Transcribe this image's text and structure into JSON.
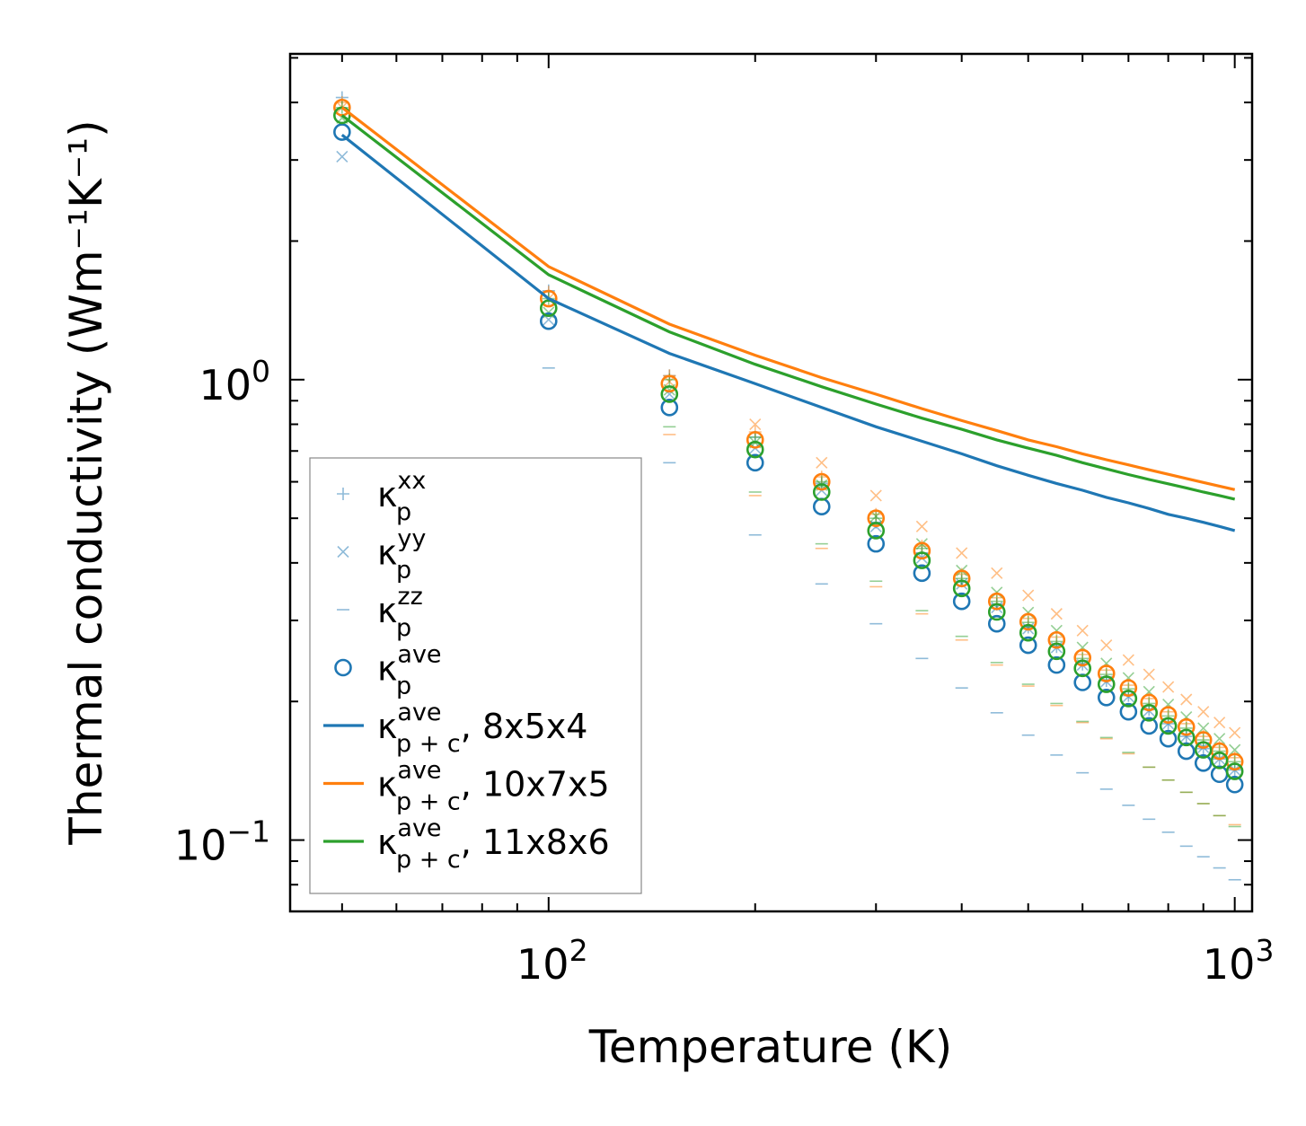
{
  "chart_data": {
    "type": "scatter",
    "title": "",
    "xlabel": "Temperature (K)",
    "ylabel": "Thermal conductivity (Wm⁻¹K⁻¹)",
    "xscale": "log",
    "yscale": "log",
    "xlim": [
      42,
      1060
    ],
    "ylim": [
      0.07,
      5.1
    ],
    "xticks": [
      {
        "value": 100,
        "base": "10",
        "exp": "2"
      },
      {
        "value": 1000,
        "base": "10",
        "exp": "3"
      }
    ],
    "yticks": [
      {
        "value": 1,
        "base": "10",
        "exp": "0"
      },
      {
        "value": 0.1,
        "base": "10",
        "exp": "−1"
      }
    ],
    "legend_position": "lower-left",
    "x": [
      50,
      100,
      150,
      200,
      250,
      300,
      350,
      400,
      450,
      500,
      550,
      600,
      650,
      700,
      750,
      800,
      850,
      900,
      950,
      1000
    ],
    "colors": {
      "blue": "#1f77b4",
      "orange": "#ff7f0e",
      "green": "#2ca02c"
    },
    "groups": [
      {
        "name": "8x5x4",
        "color": "#1f77b4",
        "ave": [
          3.45,
          1.34,
          0.87,
          0.66,
          0.53,
          0.44,
          0.38,
          0.33,
          0.295,
          0.265,
          0.24,
          0.22,
          0.204,
          0.19,
          0.177,
          0.166,
          0.156,
          0.147,
          0.139,
          0.132
        ],
        "xx": [
          4.1,
          1.56,
          1.02,
          0.75,
          0.595,
          0.49,
          0.42,
          0.365,
          0.325,
          0.29,
          0.263,
          0.241,
          0.222,
          0.206,
          0.192,
          0.179,
          0.168,
          0.158,
          0.15,
          0.142
        ],
        "yy": [
          3.05,
          1.35,
          0.93,
          0.71,
          0.575,
          0.48,
          0.41,
          0.36,
          0.32,
          0.288,
          0.262,
          0.24,
          0.221,
          0.205,
          0.191,
          0.179,
          0.168,
          0.159,
          0.15,
          0.142
        ],
        "zz": [
          null,
          1.06,
          0.66,
          0.46,
          0.36,
          0.295,
          0.248,
          0.214,
          0.189,
          0.169,
          0.153,
          0.14,
          0.129,
          0.119,
          0.111,
          0.104,
          0.097,
          0.092,
          0.087,
          0.082
        ],
        "line": [
          3.4,
          1.5,
          1.14,
          0.98,
          0.87,
          0.79,
          0.735,
          0.69,
          0.65,
          0.62,
          0.595,
          0.575,
          0.555,
          0.54,
          0.525,
          0.51,
          0.5,
          0.49,
          0.48,
          0.47
        ]
      },
      {
        "name": "10x7x5",
        "color": "#ff7f0e",
        "ave": [
          3.9,
          1.5,
          0.98,
          0.74,
          0.6,
          0.5,
          0.425,
          0.37,
          0.33,
          0.298,
          0.272,
          0.249,
          0.23,
          0.214,
          0.199,
          0.187,
          0.176,
          0.165,
          0.156,
          0.148
        ],
        "xx": [
          4.0,
          1.55,
          1.02,
          0.77,
          0.615,
          0.51,
          0.435,
          0.378,
          0.336,
          0.303,
          0.276,
          0.253,
          0.234,
          0.217,
          0.203,
          0.19,
          0.179,
          0.168,
          0.159,
          0.151
        ],
        "yy": [
          3.9,
          1.5,
          0.99,
          0.8,
          0.66,
          0.56,
          0.48,
          0.42,
          0.38,
          0.34,
          0.31,
          0.285,
          0.265,
          0.246,
          0.229,
          0.215,
          0.202,
          0.19,
          0.18,
          0.171
        ],
        "zz": [
          null,
          null,
          0.76,
          0.56,
          0.43,
          0.355,
          0.31,
          0.272,
          0.24,
          0.216,
          0.196,
          0.18,
          0.166,
          0.154,
          0.144,
          0.135,
          0.127,
          0.12,
          0.113,
          0.108
        ],
        "line": [
          3.9,
          1.76,
          1.32,
          1.13,
          1.01,
          0.93,
          0.865,
          0.815,
          0.775,
          0.74,
          0.715,
          0.69,
          0.67,
          0.653,
          0.637,
          0.623,
          0.61,
          0.598,
          0.587,
          0.577
        ]
      },
      {
        "name": "11x8x6",
        "color": "#2ca02c",
        "ave": [
          3.75,
          1.43,
          0.93,
          0.705,
          0.57,
          0.47,
          0.405,
          0.352,
          0.313,
          0.282,
          0.257,
          0.236,
          0.218,
          0.203,
          0.189,
          0.177,
          0.167,
          0.157,
          0.149,
          0.141
        ],
        "xx": [
          3.9,
          1.5,
          1.0,
          0.75,
          0.6,
          0.5,
          0.43,
          0.37,
          0.33,
          0.297,
          0.27,
          0.248,
          0.229,
          0.213,
          0.198,
          0.186,
          0.175,
          0.165,
          0.156,
          0.148
        ],
        "yy": [
          3.7,
          1.4,
          0.95,
          0.73,
          0.59,
          0.505,
          0.44,
          0.385,
          0.345,
          0.312,
          0.285,
          0.262,
          0.242,
          0.225,
          0.21,
          0.197,
          0.185,
          0.175,
          0.166,
          0.157
        ],
        "zz": [
          null,
          null,
          0.79,
          0.57,
          0.44,
          0.365,
          0.315,
          0.277,
          0.243,
          0.218,
          0.198,
          0.181,
          0.167,
          0.155,
          0.144,
          0.135,
          0.127,
          0.12,
          0.113,
          0.107
        ],
        "line": [
          3.75,
          1.69,
          1.27,
          1.08,
          0.965,
          0.885,
          0.825,
          0.78,
          0.74,
          0.71,
          0.685,
          0.66,
          0.64,
          0.622,
          0.607,
          0.594,
          0.582,
          0.57,
          0.56,
          0.55
        ]
      }
    ],
    "legend": [
      {
        "marker": "plus",
        "kappa": "κ",
        "sub": "p",
        "sup": "xx",
        "suffix": ""
      },
      {
        "marker": "cross",
        "kappa": "κ",
        "sub": "p",
        "sup": "yy",
        "suffix": ""
      },
      {
        "marker": "dash",
        "kappa": "κ",
        "sub": "p",
        "sup": "zz",
        "suffix": ""
      },
      {
        "marker": "circle",
        "kappa": "κ",
        "sub": "p",
        "sup": "ave",
        "suffix": ""
      },
      {
        "marker": "line-blue",
        "kappa": "κ",
        "sub": "p + c",
        "sup": "ave",
        "suffix": ", 8x5x4"
      },
      {
        "marker": "line-orange",
        "kappa": "κ",
        "sub": "p + c",
        "sup": "ave",
        "suffix": ", 10x7x5"
      },
      {
        "marker": "line-green",
        "kappa": "κ",
        "sub": "p + c",
        "sup": "ave",
        "suffix": ", 11x8x6"
      }
    ]
  }
}
